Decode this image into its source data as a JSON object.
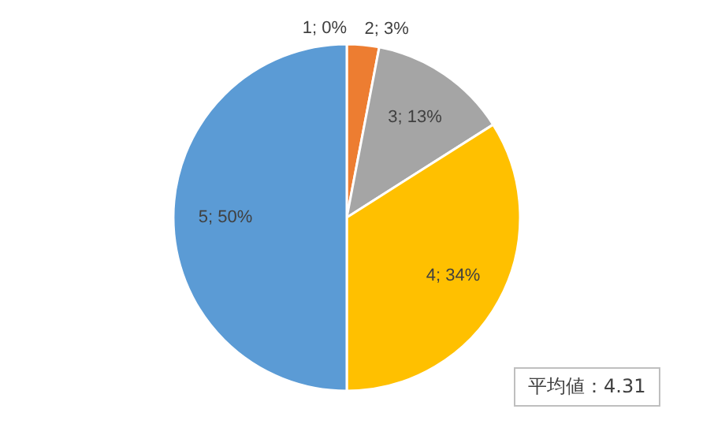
{
  "chart_data": {
    "type": "pie",
    "categories": [
      null,
      null,
      null,
      null,
      null
    ],
    "values": [
      0,
      3,
      13,
      34,
      50
    ],
    "colors": [
      "#4472c4",
      "#ed7d31",
      "#a5a5a5",
      "#ffc000",
      "#5b9bd5"
    ],
    "value_labels": [
      "1; 0%",
      "2; 3%",
      "3; 13%",
      "4; 34%",
      "5; 50%"
    ],
    "annotations": [
      "平均値：4.31"
    ]
  }
}
